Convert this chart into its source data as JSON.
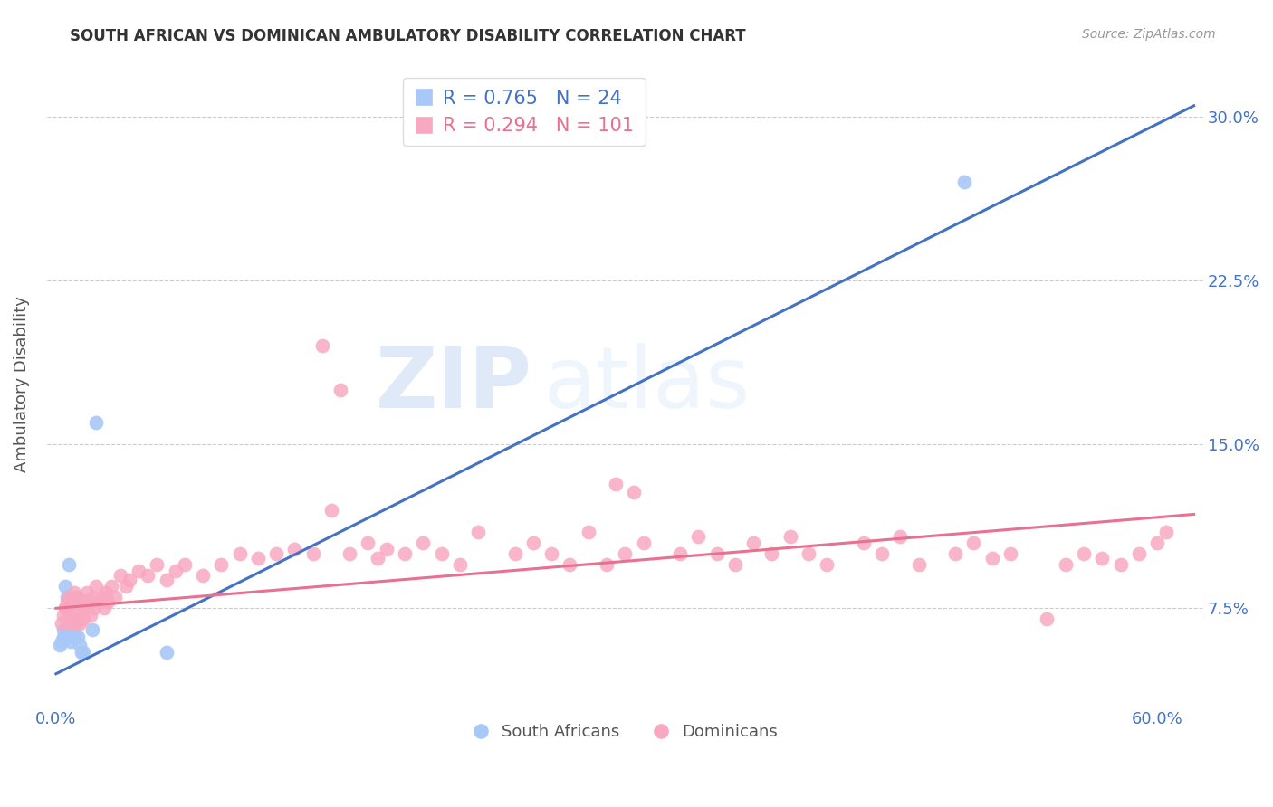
{
  "title": "SOUTH AFRICAN VS DOMINICAN AMBULATORY DISABILITY CORRELATION CHART",
  "source": "Source: ZipAtlas.com",
  "ylabel": "Ambulatory Disability",
  "xlabel_ticks": [
    "0.0%",
    "",
    "",
    "",
    "",
    "",
    "60.0%"
  ],
  "xlabel_vals": [
    0.0,
    0.1,
    0.2,
    0.3,
    0.4,
    0.5,
    0.6
  ],
  "ylabel_ticks": [
    "7.5%",
    "15.0%",
    "22.5%",
    "30.0%"
  ],
  "ylabel_vals": [
    0.075,
    0.15,
    0.225,
    0.3
  ],
  "ylim": [
    0.03,
    0.325
  ],
  "xlim": [
    -0.005,
    0.625
  ],
  "sa_R": 0.765,
  "sa_N": 24,
  "dom_R": 0.294,
  "dom_N": 101,
  "sa_color": "#a8c8f8",
  "dom_color": "#f8a8c0",
  "sa_line_color": "#4472c4",
  "dom_line_color": "#e87090",
  "watermark_zip": "ZIP",
  "watermark_atlas": "atlas",
  "background_color": "#ffffff",
  "grid_color": "#cccccc",
  "tick_color": "#4472c4",
  "sa_points_x": [
    0.002,
    0.003,
    0.004,
    0.004,
    0.005,
    0.005,
    0.006,
    0.006,
    0.007,
    0.007,
    0.008,
    0.008,
    0.009,
    0.01,
    0.01,
    0.011,
    0.012,
    0.013,
    0.014,
    0.015,
    0.02,
    0.022,
    0.06,
    0.495
  ],
  "sa_points_y": [
    0.058,
    0.06,
    0.062,
    0.065,
    0.075,
    0.085,
    0.065,
    0.08,
    0.068,
    0.095,
    0.06,
    0.068,
    0.065,
    0.062,
    0.08,
    0.068,
    0.062,
    0.058,
    0.055,
    0.055,
    0.065,
    0.16,
    0.055,
    0.27
  ],
  "dom_points_x": [
    0.003,
    0.004,
    0.005,
    0.006,
    0.006,
    0.007,
    0.007,
    0.008,
    0.008,
    0.009,
    0.009,
    0.01,
    0.01,
    0.011,
    0.011,
    0.012,
    0.012,
    0.013,
    0.013,
    0.014,
    0.014,
    0.015,
    0.015,
    0.016,
    0.017,
    0.018,
    0.019,
    0.02,
    0.021,
    0.022,
    0.023,
    0.025,
    0.026,
    0.027,
    0.028,
    0.03,
    0.032,
    0.035,
    0.038,
    0.04,
    0.045,
    0.05,
    0.055,
    0.06,
    0.065,
    0.07,
    0.08,
    0.09,
    0.1,
    0.11,
    0.12,
    0.13,
    0.14,
    0.15,
    0.16,
    0.17,
    0.175,
    0.18,
    0.19,
    0.2,
    0.21,
    0.22,
    0.23,
    0.25,
    0.26,
    0.27,
    0.28,
    0.29,
    0.3,
    0.31,
    0.32,
    0.34,
    0.35,
    0.36,
    0.37,
    0.38,
    0.39,
    0.4,
    0.41,
    0.42,
    0.44,
    0.45,
    0.46,
    0.47,
    0.49,
    0.5,
    0.51,
    0.52,
    0.54,
    0.55,
    0.56,
    0.57,
    0.58,
    0.59,
    0.6,
    0.605,
    0.305,
    0.315,
    0.145,
    0.155
  ],
  "dom_points_y": [
    0.068,
    0.072,
    0.075,
    0.07,
    0.078,
    0.072,
    0.08,
    0.068,
    0.075,
    0.072,
    0.078,
    0.07,
    0.082,
    0.068,
    0.075,
    0.072,
    0.08,
    0.068,
    0.078,
    0.072,
    0.075,
    0.07,
    0.078,
    0.075,
    0.082,
    0.078,
    0.072,
    0.08,
    0.075,
    0.085,
    0.078,
    0.08,
    0.075,
    0.082,
    0.078,
    0.085,
    0.08,
    0.09,
    0.085,
    0.088,
    0.092,
    0.09,
    0.095,
    0.088,
    0.092,
    0.095,
    0.09,
    0.095,
    0.1,
    0.098,
    0.1,
    0.102,
    0.1,
    0.12,
    0.1,
    0.105,
    0.098,
    0.102,
    0.1,
    0.105,
    0.1,
    0.095,
    0.11,
    0.1,
    0.105,
    0.1,
    0.095,
    0.11,
    0.095,
    0.1,
    0.105,
    0.1,
    0.108,
    0.1,
    0.095,
    0.105,
    0.1,
    0.108,
    0.1,
    0.095,
    0.105,
    0.1,
    0.108,
    0.095,
    0.1,
    0.105,
    0.098,
    0.1,
    0.07,
    0.095,
    0.1,
    0.098,
    0.095,
    0.1,
    0.105,
    0.11,
    0.132,
    0.128,
    0.195,
    0.175
  ]
}
